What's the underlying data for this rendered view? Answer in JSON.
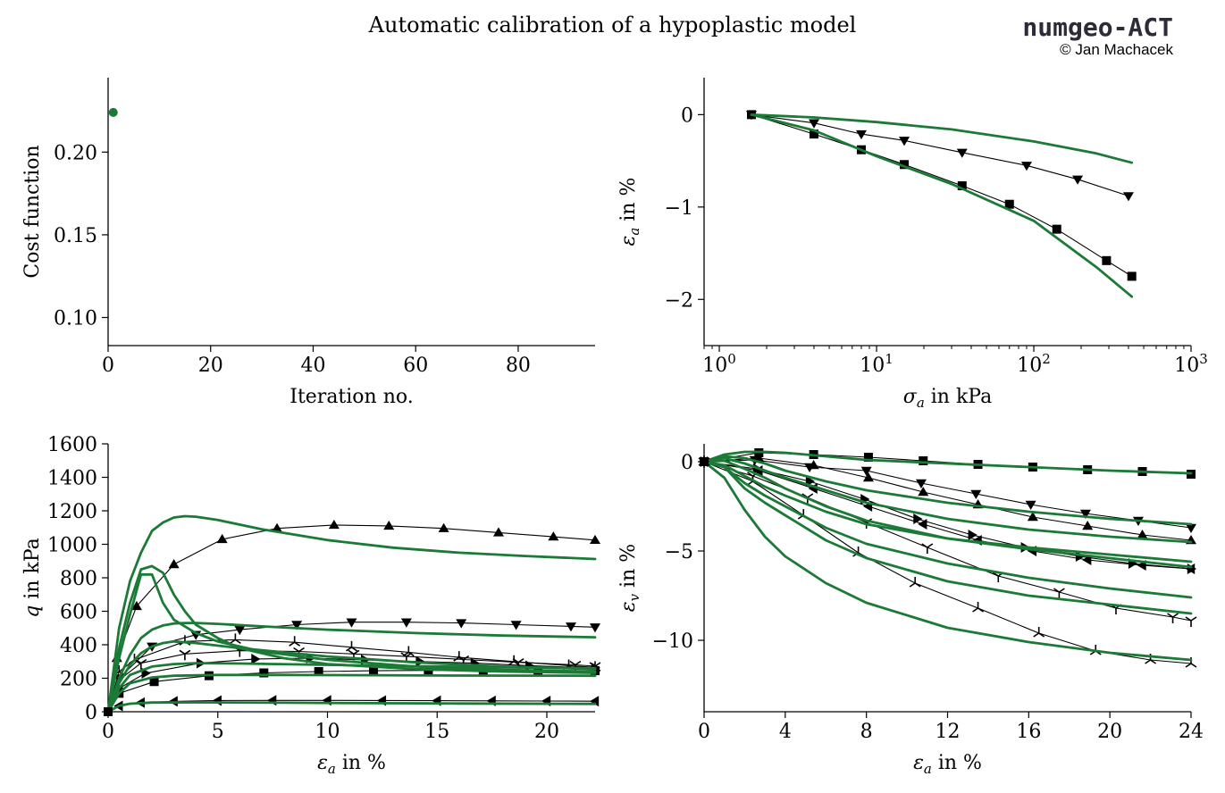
{
  "figure": {
    "title": "Automatic calibration of a hypoplastic model",
    "brand": "numgeo-ACT",
    "author": "© Jan Machacek"
  },
  "colors": {
    "model": "#1a7a36",
    "experiment": "#000000"
  },
  "chart_data": [
    {
      "id": "cost",
      "type": "scatter",
      "xlabel": "Iteration no.",
      "ylabel": "Cost function",
      "xlim": [
        0,
        95
      ],
      "ylim": [
        0.083,
        0.245
      ],
      "xticks": [
        0,
        20,
        40,
        60,
        80
      ],
      "yticks": [
        0.1,
        0.15,
        0.2
      ],
      "ytick_labels": [
        "0.10",
        "0.15",
        "0.20"
      ],
      "series": [
        {
          "points": [
            [
              1,
              0.224
            ]
          ]
        }
      ]
    },
    {
      "id": "oedometer",
      "type": "line",
      "xscale": "log",
      "xlabel": "σ_a in kPa",
      "ylabel": "ε_a in %",
      "xlim": [
        0.8,
        1000
      ],
      "ylim": [
        -2.5,
        0.4
      ],
      "xtick_labels": [
        "10^0",
        "10^1",
        "10^2",
        "10^3"
      ],
      "yticks": [
        0,
        -1,
        -2
      ],
      "ytick_labels": [
        "0",
        "−1",
        "−2"
      ],
      "experiments": [
        {
          "marker": "tri_down",
          "x": [
            1.6,
            4,
            8,
            15,
            35,
            90,
            190,
            400
          ],
          "y": [
            0,
            -0.09,
            -0.21,
            -0.28,
            -0.41,
            -0.55,
            -0.7,
            -0.88
          ]
        },
        {
          "marker": "square",
          "x": [
            1.6,
            4,
            8,
            15,
            35,
            70,
            140,
            290,
            420
          ],
          "y": [
            0,
            -0.21,
            -0.38,
            -0.54,
            -0.77,
            -0.97,
            -1.24,
            -1.58,
            -1.75
          ]
        }
      ],
      "models": [
        {
          "x": [
            1.6,
            4,
            10,
            30,
            100,
            250,
            420
          ],
          "y": [
            0,
            -0.03,
            -0.08,
            -0.16,
            -0.29,
            -0.42,
            -0.52
          ]
        },
        {
          "x": [
            1.6,
            4,
            10,
            30,
            100,
            250,
            420
          ],
          "y": [
            0,
            -0.17,
            -0.45,
            -0.75,
            -1.15,
            -1.65,
            -1.97
          ]
        }
      ]
    },
    {
      "id": "triaxial_q",
      "type": "line",
      "xlabel": "ε_a in %",
      "ylabel": "q in kPa",
      "xlim": [
        0,
        22.2
      ],
      "ylim": [
        0,
        1600
      ],
      "xticks": [
        0,
        5,
        10,
        15,
        20
      ],
      "yticks": [
        0,
        200,
        400,
        600,
        800,
        1000,
        1200,
        1400,
        1600
      ],
      "experiments": [
        {
          "marker": "tri_up",
          "x": [
            0,
            0.4,
            1.3,
            3,
            5.2,
            7.7,
            10.3,
            12.8,
            15.3,
            17.8,
            20.3,
            22.2
          ],
          "y": [
            0,
            320,
            630,
            880,
            1030,
            1095,
            1115,
            1110,
            1095,
            1070,
            1045,
            1025
          ]
        },
        {
          "marker": "tri_down",
          "x": [
            0,
            0.5,
            2,
            4,
            6,
            8.6,
            11.1,
            13.6,
            16.1,
            18.6,
            21.1,
            22.2
          ],
          "y": [
            0,
            200,
            390,
            460,
            490,
            520,
            535,
            535,
            530,
            520,
            510,
            505
          ]
        },
        {
          "marker": "tri_left",
          "x": [
            0,
            0.5,
            1.5,
            3,
            5,
            7.5,
            10,
            12.5,
            15,
            17.5,
            20,
            22.2
          ],
          "y": [
            0,
            35,
            55,
            62,
            67,
            68,
            68,
            67,
            66,
            65,
            64,
            63
          ]
        },
        {
          "marker": "square",
          "x": [
            0,
            0.5,
            2.1,
            4.6,
            7.1,
            9.6,
            12.1,
            14.6,
            17.1,
            19.6,
            22.2
          ],
          "y": [
            0,
            110,
            180,
            215,
            232,
            240,
            245,
            247,
            247,
            246,
            245
          ]
        },
        {
          "marker": "tri_right",
          "x": [
            0,
            0.5,
            1.7,
            4.2,
            6.7,
            9.2,
            11.7,
            14.2,
            16.7,
            19.2,
            22.2
          ],
          "y": [
            0,
            140,
            230,
            290,
            315,
            320,
            310,
            300,
            290,
            275,
            262
          ]
        },
        {
          "marker": "tri_upx",
          "x": [
            0,
            0.5,
            1.2,
            3.5,
            5.8,
            8.5,
            11.1,
            13.7,
            16,
            18.5,
            21,
            22.2
          ],
          "y": [
            0,
            240,
            310,
            420,
            430,
            415,
            385,
            355,
            325,
            300,
            275,
            265
          ]
        },
        {
          "marker": "tri_downx",
          "x": [
            0,
            0.5,
            1.5,
            3.5,
            6,
            8.7,
            11.2,
            13.6,
            16.2,
            18.7,
            21.3,
            22.2
          ],
          "y": [
            0,
            190,
            290,
            345,
            365,
            360,
            345,
            330,
            312,
            295,
            280,
            272
          ]
        }
      ],
      "models": [
        {
          "x": [
            0,
            0.5,
            1,
            1.5,
            2,
            2.5,
            3,
            3.5,
            4,
            5,
            7,
            10,
            13,
            16,
            19,
            22.2
          ],
          "y": [
            0,
            500,
            780,
            950,
            1080,
            1130,
            1160,
            1168,
            1165,
            1145,
            1090,
            1025,
            980,
            950,
            930,
            912
          ]
        },
        {
          "x": [
            0,
            0.5,
            1,
            1.5,
            2,
            2.5,
            3,
            3.5,
            4,
            5,
            7,
            10,
            14,
            18,
            22.2
          ],
          "y": [
            0,
            200,
            340,
            440,
            490,
            515,
            527,
            530,
            530,
            525,
            510,
            490,
            470,
            455,
            445
          ]
        },
        {
          "x": [
            0,
            0.5,
            1,
            1.5,
            2,
            2.5,
            3,
            3.5,
            4,
            5,
            6,
            8,
            10,
            14,
            18,
            22.2
          ],
          "y": [
            0,
            380,
            650,
            850,
            870,
            830,
            700,
            600,
            520,
            440,
            380,
            320,
            285,
            255,
            240,
            232
          ]
        },
        {
          "x": [
            0,
            0.5,
            1,
            1.5,
            2,
            2.5,
            3,
            4,
            5,
            7,
            10,
            14,
            18,
            22.2
          ],
          "y": [
            0,
            320,
            580,
            820,
            820,
            650,
            550,
            470,
            420,
            360,
            310,
            270,
            250,
            240
          ]
        },
        {
          "x": [
            0,
            0.5,
            1,
            1.5,
            2,
            2.5,
            3,
            4,
            6,
            10,
            14,
            18,
            22.2
          ],
          "y": [
            0,
            170,
            280,
            350,
            390,
            410,
            420,
            410,
            380,
            330,
            295,
            270,
            255
          ]
        },
        {
          "x": [
            0,
            0.5,
            1,
            2,
            3,
            4,
            6,
            10,
            14,
            18,
            22.2
          ],
          "y": [
            0,
            140,
            220,
            270,
            285,
            290,
            288,
            280,
            272,
            265,
            260
          ]
        },
        {
          "x": [
            0,
            0.5,
            1,
            2,
            3,
            5,
            8,
            12,
            16,
            22.2
          ],
          "y": [
            0,
            110,
            170,
            205,
            215,
            220,
            220,
            218,
            216,
            215
          ]
        },
        {
          "x": [
            0,
            0.5,
            1,
            2,
            4,
            8,
            12,
            16,
            22.2
          ],
          "y": [
            0,
            35,
            48,
            55,
            56,
            54,
            51,
            49,
            47
          ]
        }
      ]
    },
    {
      "id": "triaxial_ev",
      "type": "line",
      "xlabel": "ε_a in %",
      "ylabel": "ε_v in %",
      "xlim": [
        0,
        24
      ],
      "ylim": [
        -14,
        1
      ],
      "xticks": [
        0,
        4,
        8,
        12,
        16,
        20,
        24
      ],
      "yticks": [
        0,
        -5,
        -10
      ],
      "ytick_labels": [
        "0",
        "−5",
        "−10"
      ],
      "experiments": [
        {
          "marker": "square",
          "x": [
            0,
            2.7,
            5.4,
            8.1,
            10.8,
            13.5,
            16.2,
            18.9,
            21.6,
            24
          ],
          "y": [
            0,
            0.5,
            0.4,
            0.25,
            0.05,
            -0.15,
            -0.3,
            -0.45,
            -0.55,
            -0.7
          ]
        },
        {
          "marker": "tri_up",
          "x": [
            0,
            2.7,
            5.4,
            8.1,
            10.8,
            13.5,
            16.2,
            18.9,
            21.6,
            24
          ],
          "y": [
            0,
            0.2,
            -0.2,
            -0.9,
            -1.7,
            -2.4,
            -3.1,
            -3.6,
            -4.1,
            -4.4
          ]
        },
        {
          "marker": "tri_down",
          "x": [
            0,
            2.5,
            5.2,
            8,
            10.7,
            13.4,
            16.1,
            18.8,
            21.4,
            24
          ],
          "y": [
            0,
            0.1,
            -0.3,
            -0.5,
            -1.2,
            -1.8,
            -2.4,
            -2.9,
            -3.3,
            -3.7
          ]
        },
        {
          "marker": "tri_right",
          "x": [
            0,
            2.6,
            5.2,
            7.9,
            10.5,
            13.2,
            15.8,
            18.5,
            21.1,
            24
          ],
          "y": [
            0,
            -0.4,
            -1.1,
            -2.1,
            -3.2,
            -4.1,
            -4.8,
            -5.3,
            -5.7,
            -6.0
          ]
        },
        {
          "marker": "tri_left",
          "x": [
            0,
            2.7,
            5.4,
            8.1,
            10.8,
            13.5,
            16.2,
            18.9,
            21.6,
            24
          ],
          "y": [
            0,
            -0.5,
            -1.5,
            -2.5,
            -3.5,
            -4.4,
            -5.0,
            -5.5,
            -5.8,
            -6.0
          ]
        },
        {
          "marker": "tri_downx",
          "x": [
            0,
            2.4,
            5.1,
            8,
            11,
            14.5,
            17.5,
            20.3,
            23.1,
            24
          ],
          "y": [
            0,
            -0.8,
            -2.0,
            -3.4,
            -4.8,
            -6.4,
            -7.3,
            -8.2,
            -8.7,
            -8.9
          ]
        },
        {
          "marker": "tri_upx",
          "x": [
            0,
            2.4,
            4.9,
            7.6,
            10.4,
            13.5,
            16.5,
            19.3,
            22,
            24
          ],
          "y": [
            0,
            -1.1,
            -3.0,
            -5.1,
            -6.8,
            -8.2,
            -9.6,
            -10.6,
            -11.1,
            -11.3
          ]
        }
      ],
      "models": [
        {
          "x": [
            0,
            1,
            2,
            3,
            4,
            6,
            8,
            12,
            16,
            20,
            24
          ],
          "y": [
            0,
            0.4,
            0.55,
            0.55,
            0.5,
            0.3,
            0.1,
            -0.1,
            -0.3,
            -0.5,
            -0.65
          ]
        },
        {
          "x": [
            0,
            1,
            2,
            3,
            4,
            6,
            8,
            12,
            16,
            20,
            24
          ],
          "y": [
            0,
            0.3,
            0.2,
            -0.1,
            -0.5,
            -1.1,
            -1.6,
            -2.3,
            -2.8,
            -3.2,
            -3.5
          ]
        },
        {
          "x": [
            0,
            1,
            2,
            3,
            4,
            6,
            8,
            12,
            16,
            20,
            24
          ],
          "y": [
            0,
            0.2,
            -0.1,
            -0.5,
            -0.9,
            -1.6,
            -2.3,
            -3.2,
            -3.8,
            -4.2,
            -4.5
          ]
        },
        {
          "x": [
            0,
            1,
            2,
            3,
            4,
            6,
            8,
            12,
            16,
            20,
            24
          ],
          "y": [
            0,
            0.05,
            -0.4,
            -0.9,
            -1.5,
            -2.5,
            -3.3,
            -4.3,
            -4.9,
            -5.4,
            -5.9
          ]
        },
        {
          "x": [
            0,
            1,
            2,
            3,
            4,
            6,
            8,
            12,
            16,
            20,
            24
          ],
          "y": [
            0,
            -0.2,
            -0.8,
            -1.4,
            -1.9,
            -2.8,
            -3.5,
            -4.3,
            -4.8,
            -5.2,
            -5.6
          ]
        },
        {
          "x": [
            0,
            1,
            2,
            3,
            4,
            6,
            8,
            12,
            16,
            20,
            24
          ],
          "y": [
            0,
            -0.3,
            -1.2,
            -1.9,
            -2.5,
            -3.7,
            -4.6,
            -5.7,
            -6.5,
            -7.1,
            -7.6
          ]
        },
        {
          "x": [
            0,
            1,
            2,
            3,
            4,
            6,
            8,
            12,
            16,
            20,
            24
          ],
          "y": [
            0,
            -0.3,
            -1.5,
            -2.3,
            -3.0,
            -4.4,
            -5.4,
            -6.7,
            -7.5,
            -8.0,
            -8.5
          ]
        },
        {
          "x": [
            0,
            1,
            2,
            3,
            4,
            6,
            8,
            12,
            16,
            20,
            24
          ],
          "y": [
            0,
            -0.9,
            -2.7,
            -4.2,
            -5.3,
            -6.8,
            -7.9,
            -9.3,
            -10.1,
            -10.7,
            -11.1
          ]
        }
      ]
    }
  ]
}
